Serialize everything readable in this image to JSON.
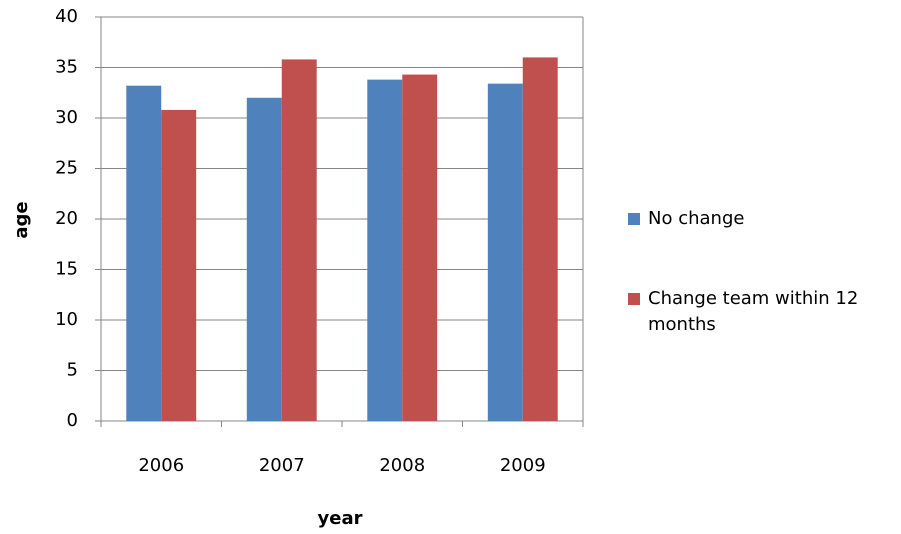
{
  "chart_data": {
    "type": "bar",
    "x_label": "year",
    "y_label": "age",
    "categories": [
      "2006",
      "2007",
      "2008",
      "2009"
    ],
    "series": [
      {
        "name": "No change",
        "color": "#4f81bd",
        "values": [
          33.2,
          32.0,
          33.8,
          33.4
        ]
      },
      {
        "name": "Change team within 12 months",
        "color": "#c0504d",
        "values": [
          30.8,
          35.8,
          34.3,
          36.0
        ]
      }
    ],
    "ylim": [
      0,
      40
    ],
    "yticks": [
      0,
      5,
      10,
      15,
      20,
      25,
      30,
      35,
      40
    ],
    "grid": true,
    "legend": "right"
  }
}
